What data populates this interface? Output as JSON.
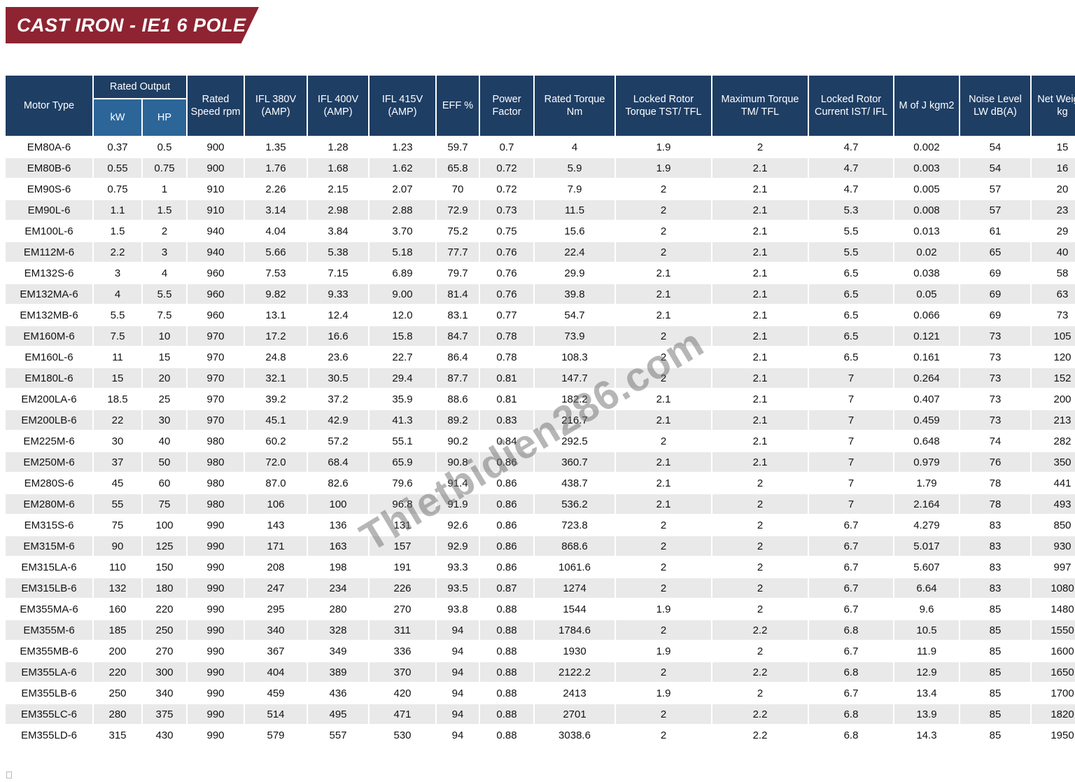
{
  "banner": {
    "title": "CAST IRON - IE1 6 POLE"
  },
  "watermark": "Thietbidien286.com",
  "colors": {
    "banner": "#8e2432",
    "header": "#1e3e64",
    "subhead": "#2c6598",
    "stripe": "#e9e9e9",
    "text": "#121212"
  },
  "table": {
    "header": {
      "motor_type": "Motor Type",
      "rated_output": "Rated Output",
      "kw": "kW",
      "hp": "HP",
      "rated_speed": "Rated Speed rpm",
      "ifl_380": "IFL 380V (AMP)",
      "ifl_400": "IFL 400V (AMP)",
      "ifl_415": "IFL 415V (AMP)",
      "eff": "EFF %",
      "power_factor": "Power Factor",
      "rated_torque": "Rated Torque Nm",
      "locked_rotor_torque": "Locked Rotor Torque TST/ TFL",
      "maximum_torque": "Maximum Torque TM/ TFL",
      "locked_rotor_current": "Locked Rotor Current IST/ IFL",
      "m_of_j": "M of J kgm2",
      "noise_level": "Noise Level LW dB(A)",
      "net_weight": "Net Weight kg"
    },
    "rows": [
      [
        "EM80A-6",
        "0.37",
        "0.5",
        "900",
        "1.35",
        "1.28",
        "1.23",
        "59.7",
        "0.7",
        "4",
        "1.9",
        "2",
        "4.7",
        "0.002",
        "54",
        "15"
      ],
      [
        "EM80B-6",
        "0.55",
        "0.75",
        "900",
        "1.76",
        "1.68",
        "1.62",
        "65.8",
        "0.72",
        "5.9",
        "1.9",
        "2.1",
        "4.7",
        "0.003",
        "54",
        "16"
      ],
      [
        "EM90S-6",
        "0.75",
        "1",
        "910",
        "2.26",
        "2.15",
        "2.07",
        "70",
        "0.72",
        "7.9",
        "2",
        "2.1",
        "4.7",
        "0.005",
        "57",
        "20"
      ],
      [
        "EM90L-6",
        "1.1",
        "1.5",
        "910",
        "3.14",
        "2.98",
        "2.88",
        "72.9",
        "0.73",
        "11.5",
        "2",
        "2.1",
        "5.3",
        "0.008",
        "57",
        "23"
      ],
      [
        "EM100L-6",
        "1.5",
        "2",
        "940",
        "4.04",
        "3.84",
        "3.70",
        "75.2",
        "0.75",
        "15.6",
        "2",
        "2.1",
        "5.5",
        "0.013",
        "61",
        "29"
      ],
      [
        "EM112M-6",
        "2.2",
        "3",
        "940",
        "5.66",
        "5.38",
        "5.18",
        "77.7",
        "0.76",
        "22.4",
        "2",
        "2.1",
        "5.5",
        "0.02",
        "65",
        "40"
      ],
      [
        "EM132S-6",
        "3",
        "4",
        "960",
        "7.53",
        "7.15",
        "6.89",
        "79.7",
        "0.76",
        "29.9",
        "2.1",
        "2.1",
        "6.5",
        "0.038",
        "69",
        "58"
      ],
      [
        "EM132MA-6",
        "4",
        "5.5",
        "960",
        "9.82",
        "9.33",
        "9.00",
        "81.4",
        "0.76",
        "39.8",
        "2.1",
        "2.1",
        "6.5",
        "0.05",
        "69",
        "63"
      ],
      [
        "EM132MB-6",
        "5.5",
        "7.5",
        "960",
        "13.1",
        "12.4",
        "12.0",
        "83.1",
        "0.77",
        "54.7",
        "2.1",
        "2.1",
        "6.5",
        "0.066",
        "69",
        "73"
      ],
      [
        "EM160M-6",
        "7.5",
        "10",
        "970",
        "17.2",
        "16.6",
        "15.8",
        "84.7",
        "0.78",
        "73.9",
        "2",
        "2.1",
        "6.5",
        "0.121",
        "73",
        "105"
      ],
      [
        "EM160L-6",
        "11",
        "15",
        "970",
        "24.8",
        "23.6",
        "22.7",
        "86.4",
        "0.78",
        "108.3",
        "2",
        "2.1",
        "6.5",
        "0.161",
        "73",
        "120"
      ],
      [
        "EM180L-6",
        "15",
        "20",
        "970",
        "32.1",
        "30.5",
        "29.4",
        "87.7",
        "0.81",
        "147.7",
        "2",
        "2.1",
        "7",
        "0.264",
        "73",
        "152"
      ],
      [
        "EM200LA-6",
        "18.5",
        "25",
        "970",
        "39.2",
        "37.2",
        "35.9",
        "88.6",
        "0.81",
        "182.2",
        "2.1",
        "2.1",
        "7",
        "0.407",
        "73",
        "200"
      ],
      [
        "EM200LB-6",
        "22",
        "30",
        "970",
        "45.1",
        "42.9",
        "41.3",
        "89.2",
        "0.83",
        "216.7",
        "2.1",
        "2.1",
        "7",
        "0.459",
        "73",
        "213"
      ],
      [
        "EM225M-6",
        "30",
        "40",
        "980",
        "60.2",
        "57.2",
        "55.1",
        "90.2",
        "0.84",
        "292.5",
        "2",
        "2.1",
        "7",
        "0.648",
        "74",
        "282"
      ],
      [
        "EM250M-6",
        "37",
        "50",
        "980",
        "72.0",
        "68.4",
        "65.9",
        "90.8",
        "0.86",
        "360.7",
        "2.1",
        "2.1",
        "7",
        "0.979",
        "76",
        "350"
      ],
      [
        "EM280S-6",
        "45",
        "60",
        "980",
        "87.0",
        "82.6",
        "79.6",
        "91.4",
        "0.86",
        "438.7",
        "2.1",
        "2",
        "7",
        "1.79",
        "78",
        "441"
      ],
      [
        "EM280M-6",
        "55",
        "75",
        "980",
        "106",
        "100",
        "96.8",
        "91.9",
        "0.86",
        "536.2",
        "2.1",
        "2",
        "7",
        "2.164",
        "78",
        "493"
      ],
      [
        "EM315S-6",
        "75",
        "100",
        "990",
        "143",
        "136",
        "131",
        "92.6",
        "0.86",
        "723.8",
        "2",
        "2",
        "6.7",
        "4.279",
        "83",
        "850"
      ],
      [
        "EM315M-6",
        "90",
        "125",
        "990",
        "171",
        "163",
        "157",
        "92.9",
        "0.86",
        "868.6",
        "2",
        "2",
        "6.7",
        "5.017",
        "83",
        "930"
      ],
      [
        "EM315LA-6",
        "110",
        "150",
        "990",
        "208",
        "198",
        "191",
        "93.3",
        "0.86",
        "1061.6",
        "2",
        "2",
        "6.7",
        "5.607",
        "83",
        "997"
      ],
      [
        "EM315LB-6",
        "132",
        "180",
        "990",
        "247",
        "234",
        "226",
        "93.5",
        "0.87",
        "1274",
        "2",
        "2",
        "6.7",
        "6.64",
        "83",
        "1080"
      ],
      [
        "EM355MA-6",
        "160",
        "220",
        "990",
        "295",
        "280",
        "270",
        "93.8",
        "0.88",
        "1544",
        "1.9",
        "2",
        "6.7",
        "9.6",
        "85",
        "1480"
      ],
      [
        "EM355M-6",
        "185",
        "250",
        "990",
        "340",
        "328",
        "311",
        "94",
        "0.88",
        "1784.6",
        "2",
        "2.2",
        "6.8",
        "10.5",
        "85",
        "1550"
      ],
      [
        "EM355MB-6",
        "200",
        "270",
        "990",
        "367",
        "349",
        "336",
        "94",
        "0.88",
        "1930",
        "1.9",
        "2",
        "6.7",
        "11.9",
        "85",
        "1600"
      ],
      [
        "EM355LA-6",
        "220",
        "300",
        "990",
        "404",
        "389",
        "370",
        "94",
        "0.88",
        "2122.2",
        "2",
        "2.2",
        "6.8",
        "12.9",
        "85",
        "1650"
      ],
      [
        "EM355LB-6",
        "250",
        "340",
        "990",
        "459",
        "436",
        "420",
        "94",
        "0.88",
        "2413",
        "1.9",
        "2",
        "6.7",
        "13.4",
        "85",
        "1700"
      ],
      [
        "EM355LC-6",
        "280",
        "375",
        "990",
        "514",
        "495",
        "471",
        "94",
        "0.88",
        "2701",
        "2",
        "2.2",
        "6.8",
        "13.9",
        "85",
        "1820"
      ],
      [
        "EM355LD-6",
        "315",
        "430",
        "990",
        "579",
        "557",
        "530",
        "94",
        "0.88",
        "3038.6",
        "2",
        "2.2",
        "6.8",
        "14.3",
        "85",
        "1950"
      ]
    ]
  }
}
